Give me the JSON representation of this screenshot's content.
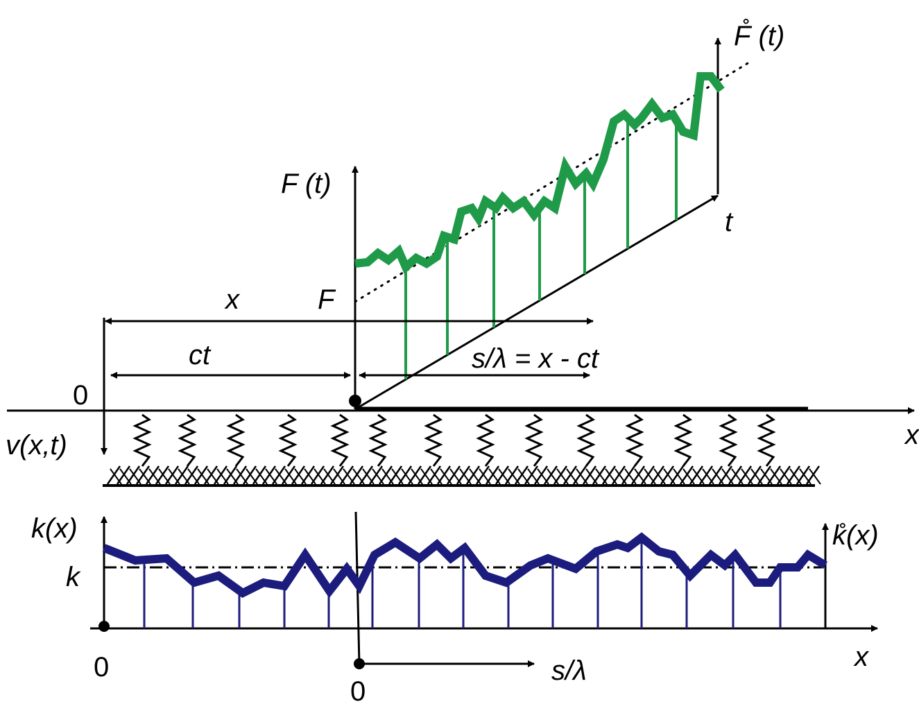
{
  "labels": {
    "f_ring_t": "F̊ (t)",
    "f_t": "F (t)",
    "t_axis": "t",
    "x_dim": "x",
    "f_level": "F",
    "ct_dim": "ct",
    "s_dim": "s/λ = x - ct",
    "origin_top": "0",
    "v_xt": "v(x,t)",
    "x_axis_top": "x",
    "k_x": "k(x)",
    "k_level": "k",
    "k_ring_x": "k̊(x)",
    "origin_bottom": "0",
    "x_axis_bottom": "x",
    "s_axis": "s/λ",
    "origin_s": "0"
  }
}
